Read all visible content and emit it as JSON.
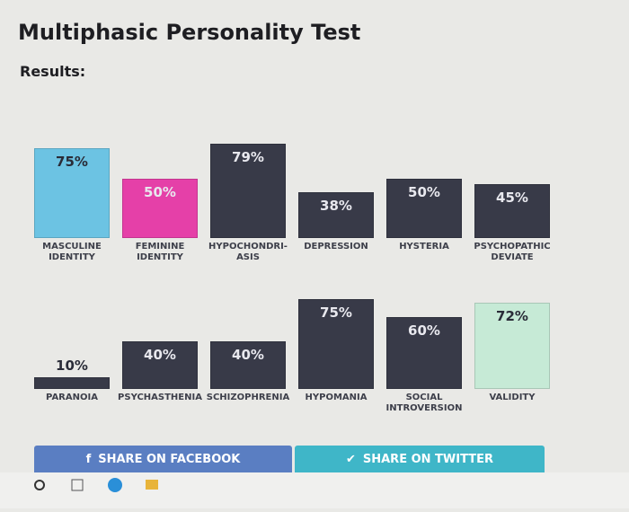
{
  "title": "Multiphasic Personality Test",
  "subtitle": "Results:",
  "chart_data": [
    {
      "type": "bar",
      "categories": [
        "MASCULINE IDENTITY",
        "FEMININE IDENTITY",
        "HYPOCHONDRI- ASIS",
        "DEPRESSION",
        "HYSTERIA",
        "PSYCHOPATHIC DEVIATE"
      ],
      "values": [
        75,
        50,
        79,
        38,
        50,
        45
      ],
      "value_labels": [
        "75%",
        "50%",
        "79%",
        "38%",
        "50%",
        "45%"
      ],
      "colors": [
        "#6cc3e3",
        "#e540a8",
        "#383a48",
        "#383a48",
        "#383a48",
        "#383a48"
      ],
      "ylim": [
        0,
        100
      ]
    },
    {
      "type": "bar",
      "categories": [
        "PARANOIA",
        "PSYCHASTHENIA",
        "SCHIZOPHRENIA",
        "HYPOMANIA",
        "SOCIAL INTROVERSION",
        "VALIDITY"
      ],
      "values": [
        10,
        40,
        40,
        75,
        60,
        72
      ],
      "value_labels": [
        "10%",
        "40%",
        "40%",
        "75%",
        "60%",
        "72%"
      ],
      "colors": [
        "#383a48",
        "#383a48",
        "#383a48",
        "#383a48",
        "#383a48",
        "#c6ead6"
      ],
      "ylim": [
        0,
        100
      ]
    }
  ],
  "buttons": [
    {
      "label": "SHARE ON FACEBOOK"
    },
    {
      "label": "SHARE ON TWITTER"
    }
  ]
}
